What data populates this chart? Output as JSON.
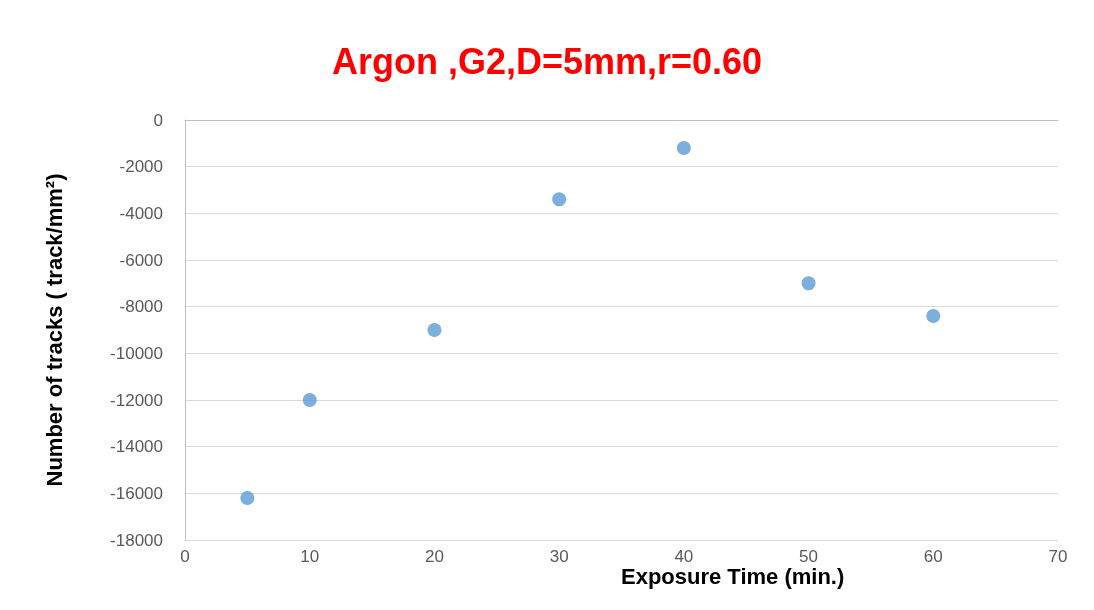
{
  "chart_data": {
    "type": "scatter",
    "title": "Argon ,G2,D=5mm,r=0.60",
    "xlabel": "Exposure Time (min.)",
    "ylabel": "Number of tracks ( track/mm²)",
    "x": [
      5,
      10,
      20,
      30,
      40,
      50,
      60
    ],
    "series": [
      {
        "color": "#5b9bd5",
        "values": [
          -16200,
          -12000,
          -9000,
          -3400,
          -1200,
          -7000,
          -8400
        ]
      }
    ],
    "xlim": [
      0,
      70
    ],
    "xticks": [
      0,
      10,
      20,
      30,
      40,
      50,
      60,
      70
    ],
    "ylim": [
      -18000,
      0
    ],
    "yticks": [
      -18000,
      -16000,
      -14000,
      -12000,
      -10000,
      -8000,
      -6000,
      -4000,
      -2000,
      0
    ],
    "grid": "y",
    "marker": "circle"
  }
}
